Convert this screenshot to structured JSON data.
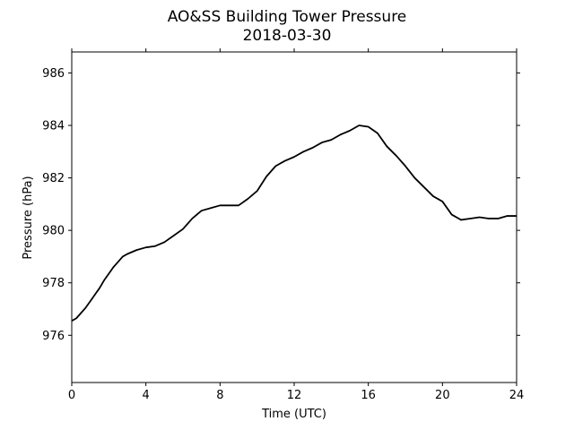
{
  "chart_data": {
    "type": "line",
    "title": "AO&SS Building Tower Pressure",
    "subtitle": "2018-03-30",
    "xlabel": "Time (UTC)",
    "ylabel": "Pressure (hPa)",
    "xlim": [
      0,
      24
    ],
    "ylim": [
      974.2,
      986.8
    ],
    "xticks": [
      "0",
      "4",
      "8",
      "12",
      "16",
      "20",
      "24"
    ],
    "yticks": [
      "976",
      "978",
      "980",
      "982",
      "984",
      "986"
    ],
    "grid": false,
    "legend": "none",
    "line_color": "#000000",
    "series": [
      {
        "x": [
          0,
          0.25,
          0.5,
          0.75,
          1,
          1.25,
          1.5,
          1.75,
          2,
          2.25,
          2.5,
          2.75,
          3,
          3.5,
          4,
          4.5,
          5,
          5.5,
          6,
          6.5,
          7,
          7.5,
          8,
          8.5,
          9,
          9.5,
          10,
          10.5,
          11,
          11.5,
          12,
          12.5,
          13,
          13.5,
          14,
          14.5,
          15,
          15.5,
          16,
          16.5,
          17,
          17.5,
          18,
          18.5,
          19,
          19.5,
          20,
          20.5,
          21,
          21.5,
          22,
          22.5,
          23,
          23.5,
          24
        ],
        "y": [
          976.55,
          976.65,
          976.85,
          977.05,
          977.3,
          977.55,
          977.8,
          978.1,
          978.35,
          978.6,
          978.8,
          979.0,
          979.1,
          979.25,
          979.35,
          979.4,
          979.55,
          979.8,
          980.05,
          980.45,
          980.75,
          980.85,
          980.95,
          980.95,
          980.95,
          981.2,
          981.5,
          982.05,
          982.45,
          982.65,
          982.8,
          983.0,
          983.15,
          983.35,
          983.45,
          983.65,
          983.8,
          984.0,
          983.95,
          983.7,
          983.2,
          982.85,
          982.45,
          982.0,
          981.65,
          981.3,
          981.1,
          980.6,
          980.4,
          980.45,
          980.5,
          980.45,
          980.45,
          980.55,
          980.55
        ]
      }
    ]
  }
}
